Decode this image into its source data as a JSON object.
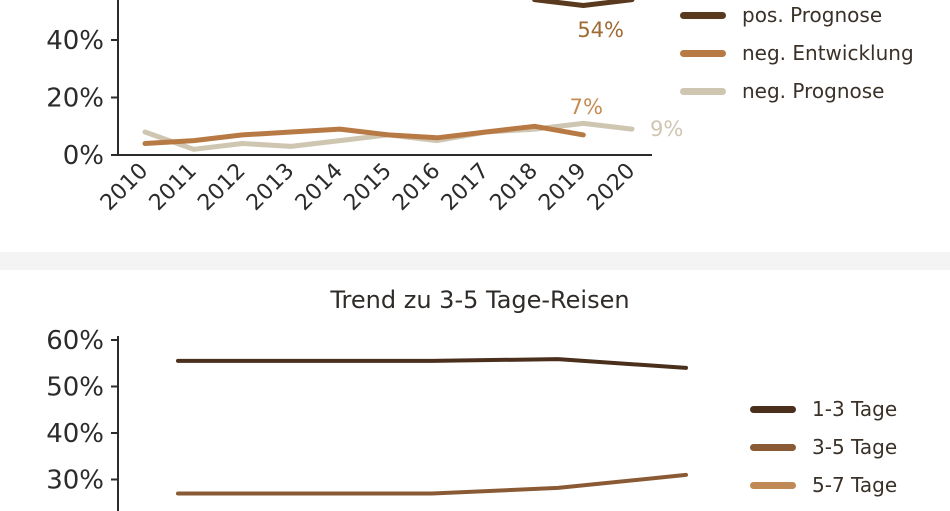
{
  "chart_data": [
    {
      "type": "line",
      "title": "",
      "xlabel": "",
      "ylabel": "",
      "x": [
        "2010",
        "2011",
        "2012",
        "2013",
        "2014",
        "2015",
        "2016",
        "2017",
        "2018",
        "2019",
        "2020"
      ],
      "ylim": [
        0,
        50
      ],
      "y_ticks": [
        "0%",
        "20%",
        "40%"
      ],
      "series": [
        {
          "name": "pos. Prognose",
          "color": "#5a3a1e",
          "values": [
            null,
            null,
            null,
            null,
            null,
            null,
            null,
            null,
            54,
            52,
            54
          ]
        },
        {
          "name": "neg. Entwicklung",
          "color": "#b87a45",
          "values": [
            4,
            5,
            7,
            8,
            9,
            7,
            6,
            8,
            10,
            7,
            null
          ]
        },
        {
          "name": "neg. Prognose",
          "color": "#cfc6b2",
          "values": [
            8,
            2,
            4,
            3,
            5,
            7,
            5,
            8,
            9,
            11,
            9
          ]
        }
      ],
      "data_labels": [
        {
          "text": "54%",
          "color": "#a06a35"
        },
        {
          "text": "7%",
          "color": "#c68b52"
        },
        {
          "text": "9%",
          "color": "#cfc6b2"
        }
      ],
      "legend": "right"
    },
    {
      "type": "line",
      "title": "Trend zu 3-5 Tage-Reisen",
      "xlabel": "",
      "ylabel": "",
      "ylim": [
        25,
        60
      ],
      "y_ticks": [
        "60%",
        "50%",
        "40%",
        "30%"
      ],
      "series": [
        {
          "name": "1-3 Tage",
          "color": "#4a2f1c",
          "values": [
            55.5,
            55.5,
            55.5,
            55.5,
            55.5,
            55.7,
            55.9,
            54
          ]
        },
        {
          "name": "3-5 Tage",
          "color": "#8a5a35",
          "values": [
            27,
            27,
            27,
            27,
            27,
            27.6,
            28.2,
            31
          ]
        },
        {
          "name": "5-7 Tage",
          "color": "#bf8a55",
          "values": []
        }
      ],
      "legend": "right"
    }
  ]
}
